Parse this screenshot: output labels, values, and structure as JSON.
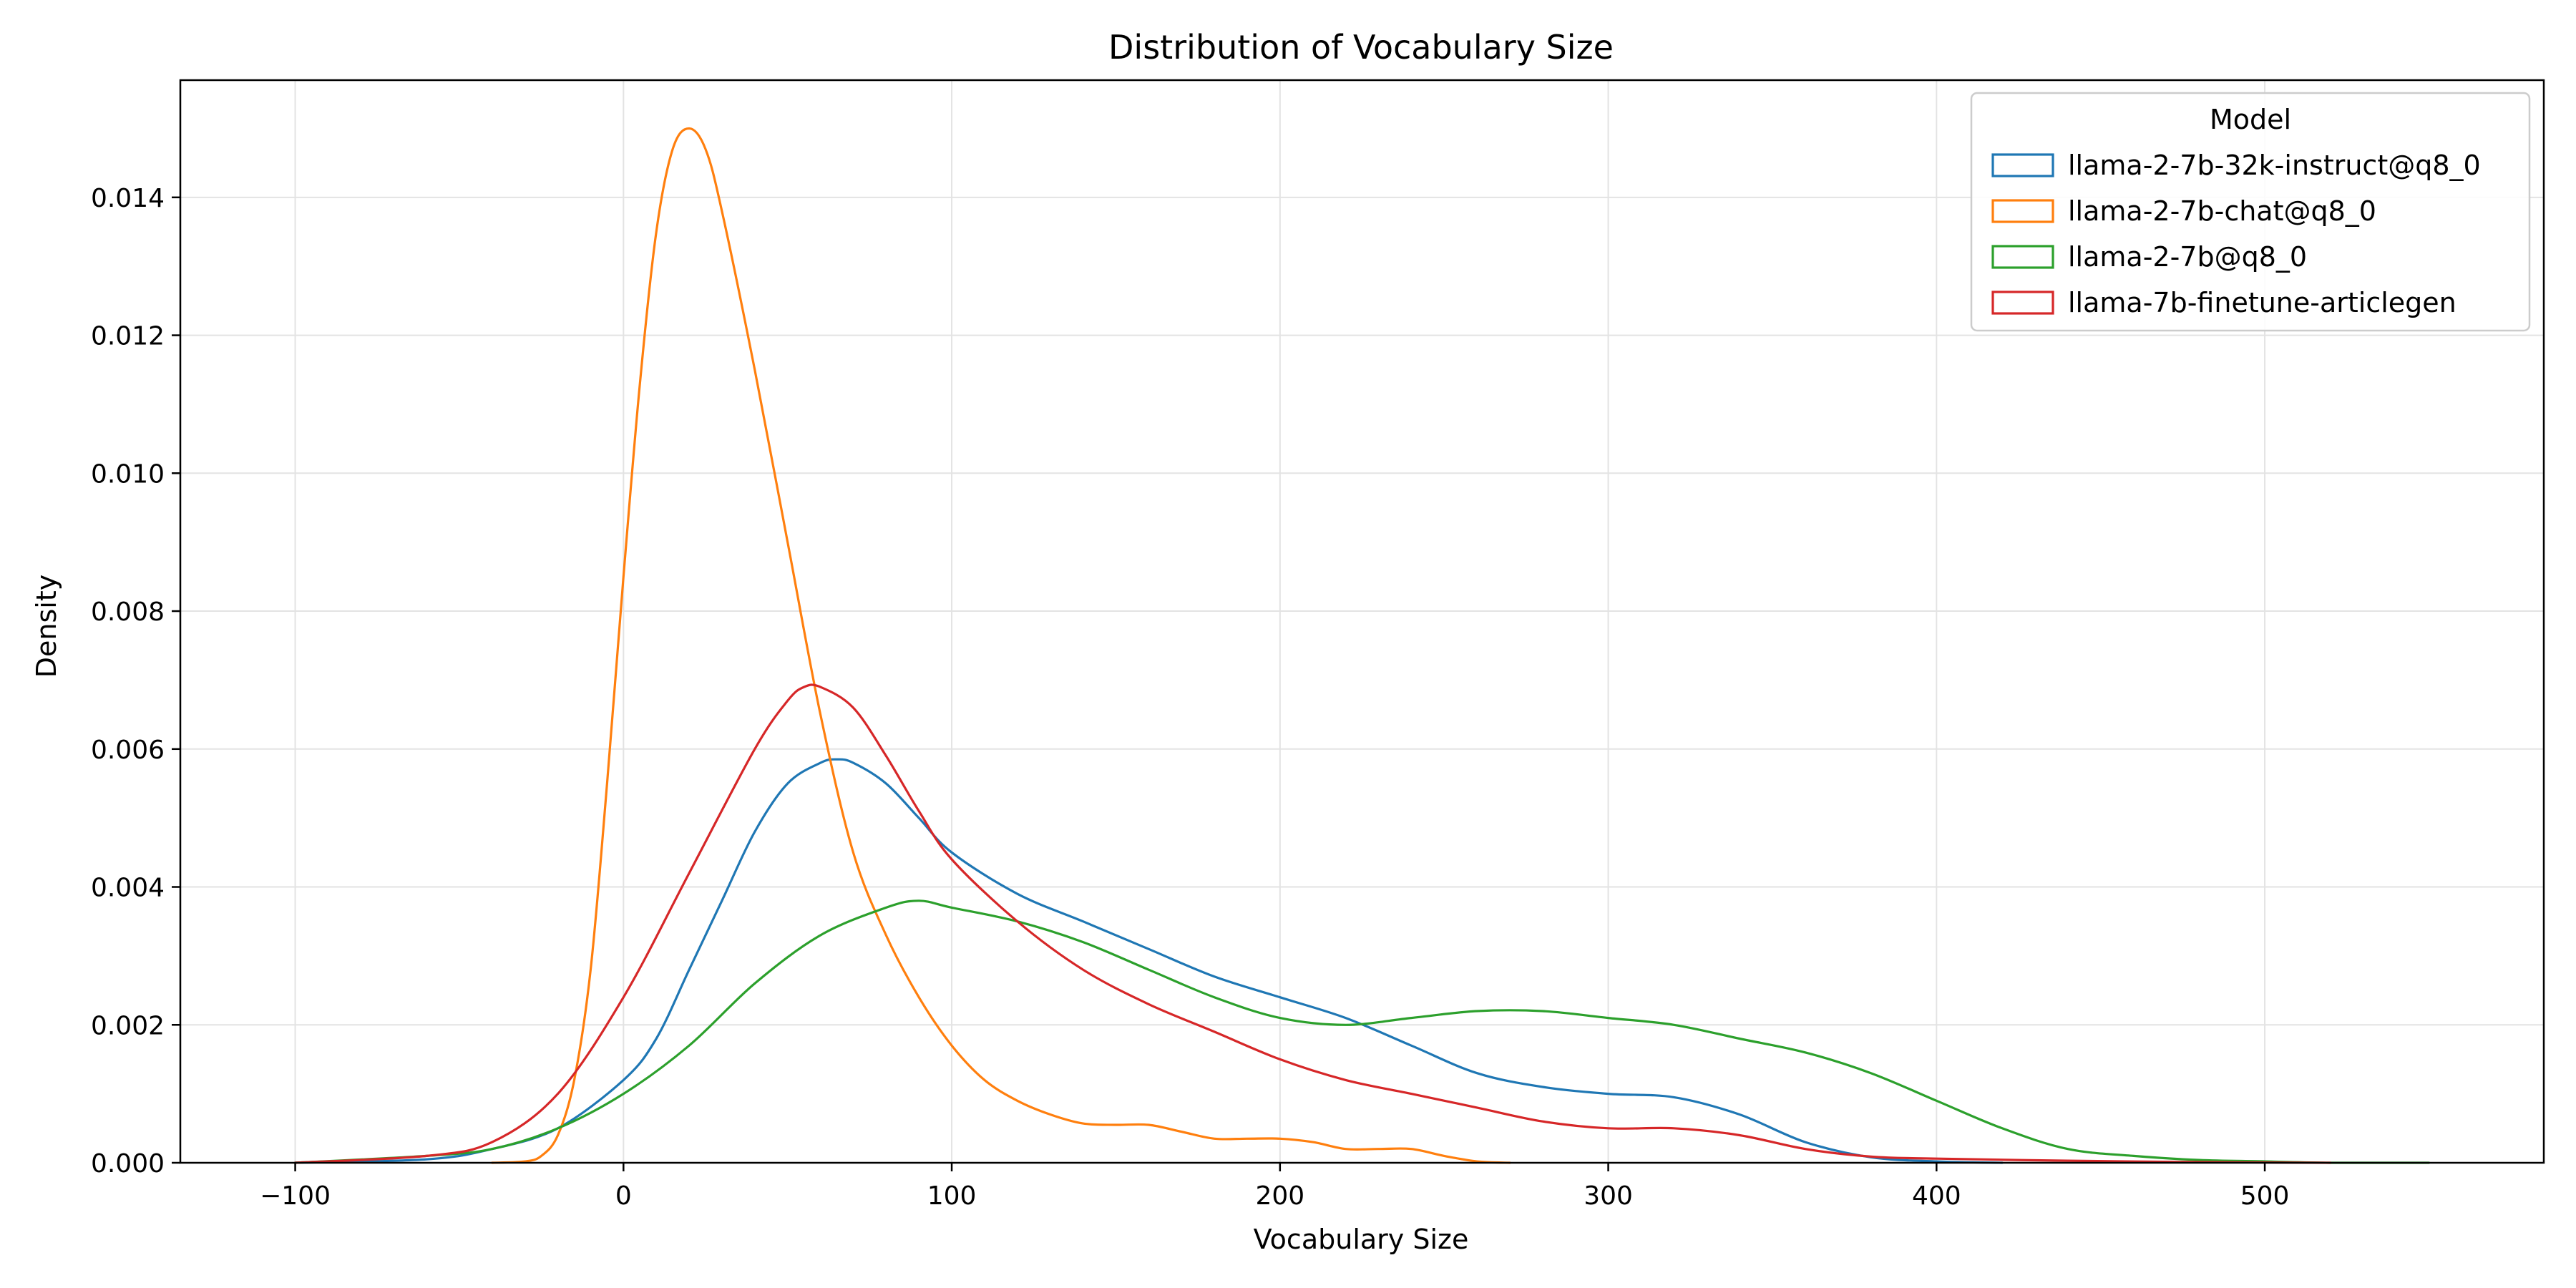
{
  "chart_data": {
    "type": "line",
    "title": "Distribution of Vocabulary Size",
    "xlabel": "Vocabulary Size",
    "ylabel": "Density",
    "xlim": [
      -135,
      585
    ],
    "ylim": [
      0,
      0.0157
    ],
    "xticks": [
      -100,
      0,
      100,
      200,
      300,
      400,
      500
    ],
    "xtick_labels": [
      "−100",
      "0",
      "100",
      "200",
      "300",
      "400",
      "500"
    ],
    "yticks": [
      0.0,
      0.002,
      0.004,
      0.006,
      0.008,
      0.01,
      0.012,
      0.014
    ],
    "ytick_labels": [
      "0.000",
      "0.002",
      "0.004",
      "0.006",
      "0.008",
      "0.010",
      "0.012",
      "0.014"
    ],
    "grid": true,
    "legend": {
      "title": "Model",
      "placement": "top-right"
    },
    "series": [
      {
        "name": "llama-2-7b-32k-instruct@q8_0",
        "color": "#1f77b4",
        "x": [
          -100,
          -60,
          -40,
          -20,
          0,
          10,
          20,
          30,
          40,
          50,
          60,
          65,
          70,
          80,
          90,
          100,
          120,
          140,
          160,
          180,
          200,
          220,
          240,
          260,
          280,
          300,
          320,
          340,
          360,
          380,
          400,
          420
        ],
        "y": [
          0.0,
          5e-05,
          0.0002,
          0.0005,
          0.0012,
          0.0018,
          0.0028,
          0.0038,
          0.0048,
          0.0055,
          0.0058,
          0.00585,
          0.0058,
          0.0055,
          0.005,
          0.0045,
          0.0039,
          0.0035,
          0.0031,
          0.0027,
          0.0024,
          0.0021,
          0.0017,
          0.0013,
          0.0011,
          0.001,
          0.00095,
          0.0007,
          0.0003,
          8e-05,
          2e-05,
          0.0
        ]
      },
      {
        "name": "llama-2-7b-chat@q8_0",
        "color": "#ff7f0e",
        "x": [
          -40,
          -30,
          -25,
          -20,
          -15,
          -10,
          -5,
          0,
          5,
          10,
          15,
          20,
          25,
          30,
          40,
          50,
          60,
          70,
          80,
          90,
          100,
          110,
          120,
          130,
          140,
          150,
          160,
          170,
          180,
          190,
          200,
          210,
          220,
          230,
          240,
          250,
          260,
          270
        ],
        "y": [
          0.0,
          2e-05,
          0.0001,
          0.0004,
          0.0012,
          0.0028,
          0.0055,
          0.0085,
          0.0113,
          0.0135,
          0.0147,
          0.015,
          0.0147,
          0.0138,
          0.0115,
          0.009,
          0.0065,
          0.0045,
          0.0033,
          0.0024,
          0.0017,
          0.0012,
          0.0009,
          0.0007,
          0.00057,
          0.00055,
          0.00055,
          0.00045,
          0.00035,
          0.00035,
          0.00035,
          0.0003,
          0.0002,
          0.0002,
          0.0002,
          0.0001,
          2e-05,
          0.0
        ]
      },
      {
        "name": "llama-2-7b@q8_0",
        "color": "#2ca02c",
        "x": [
          -100,
          -60,
          -40,
          -20,
          0,
          20,
          40,
          60,
          80,
          90,
          100,
          120,
          140,
          160,
          180,
          200,
          220,
          240,
          260,
          280,
          300,
          320,
          340,
          360,
          380,
          400,
          420,
          440,
          460,
          480,
          500,
          520,
          550
        ],
        "y": [
          0.0,
          0.0001,
          0.0002,
          0.0005,
          0.001,
          0.0017,
          0.0026,
          0.0033,
          0.0037,
          0.0038,
          0.0037,
          0.0035,
          0.0032,
          0.0028,
          0.0024,
          0.0021,
          0.002,
          0.0021,
          0.0022,
          0.0022,
          0.0021,
          0.002,
          0.0018,
          0.0016,
          0.0013,
          0.0009,
          0.0005,
          0.0002,
          0.0001,
          4e-05,
          2e-05,
          0.0,
          0.0
        ]
      },
      {
        "name": "llama-7b-finetune-articlegen",
        "color": "#d62728",
        "x": [
          -100,
          -60,
          -40,
          -20,
          0,
          20,
          40,
          50,
          55,
          60,
          70,
          80,
          90,
          100,
          120,
          140,
          160,
          180,
          200,
          220,
          240,
          260,
          280,
          300,
          320,
          340,
          360,
          380,
          400,
          440,
          480,
          520
        ],
        "y": [
          0.0,
          0.0001,
          0.0003,
          0.001,
          0.0024,
          0.0042,
          0.006,
          0.0067,
          0.0069,
          0.0069,
          0.0066,
          0.0059,
          0.0051,
          0.0044,
          0.0035,
          0.0028,
          0.0023,
          0.0019,
          0.0015,
          0.0012,
          0.001,
          0.0008,
          0.0006,
          0.0005,
          0.0005,
          0.0004,
          0.0002,
          9e-05,
          6e-05,
          3e-05,
          1e-05,
          0.0
        ]
      }
    ]
  }
}
